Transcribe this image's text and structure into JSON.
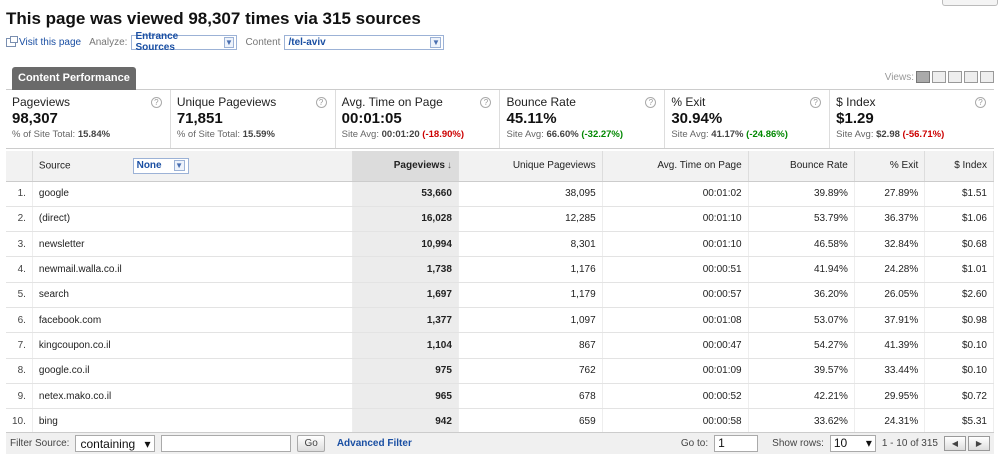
{
  "page": {
    "title": "This page was viewed 98,307 times via 315 sources"
  },
  "subbar": {
    "visit_link": "Visit this page",
    "analyze_label": "Analyze:",
    "analyze_value": "Entrance Sources",
    "content_label": "Content",
    "content_value": "/tel-aviv"
  },
  "tab": {
    "label": "Content Performance"
  },
  "views": {
    "label": "Views:"
  },
  "summary": [
    {
      "title": "Pageviews",
      "value": "98,307",
      "sub_prefix": "% of Site Total: ",
      "sub_value": "15.84%",
      "delta": ""
    },
    {
      "title": "Unique Pageviews",
      "value": "71,851",
      "sub_prefix": "% of Site Total: ",
      "sub_value": "15.59%",
      "delta": ""
    },
    {
      "title": "Avg. Time on Page",
      "value": "00:01:05",
      "sub_prefix": "Site Avg: ",
      "sub_value": "00:01:20",
      "delta": "(-18.90%)",
      "delta_type": "neg"
    },
    {
      "title": "Bounce Rate",
      "value": "45.11%",
      "sub_prefix": "Site Avg: ",
      "sub_value": "66.60%",
      "delta": "(-32.27%)",
      "delta_type": "pos"
    },
    {
      "title": "% Exit",
      "value": "30.94%",
      "sub_prefix": "Site Avg: ",
      "sub_value": "41.17%",
      "delta": "(-24.86%)",
      "delta_type": "pos"
    },
    {
      "title": "$ Index",
      "value": "$1.29",
      "sub_prefix": "Site Avg: ",
      "sub_value": "$2.98",
      "delta": "(-56.71%)",
      "delta_type": "neg"
    }
  ],
  "table": {
    "headers": {
      "source": "Source",
      "secondary": "None",
      "pageviews": "Pageviews",
      "unique": "Unique Pageviews",
      "avg_time": "Avg. Time on Page",
      "bounce": "Bounce Rate",
      "exit": "% Exit",
      "index": "$ Index"
    },
    "rows": [
      [
        "1.",
        "google",
        "53,660",
        "38,095",
        "00:01:02",
        "39.89%",
        "27.89%",
        "$1.51"
      ],
      [
        "2.",
        "(direct)",
        "16,028",
        "12,285",
        "00:01:10",
        "53.79%",
        "36.37%",
        "$1.06"
      ],
      [
        "3.",
        "newsletter",
        "10,994",
        "8,301",
        "00:01:10",
        "46.58%",
        "32.84%",
        "$0.68"
      ],
      [
        "4.",
        "newmail.walla.co.il",
        "1,738",
        "1,176",
        "00:00:51",
        "41.94%",
        "24.28%",
        "$1.01"
      ],
      [
        "5.",
        "search",
        "1,697",
        "1,179",
        "00:00:57",
        "36.20%",
        "26.05%",
        "$2.60"
      ],
      [
        "6.",
        "facebook.com",
        "1,377",
        "1,097",
        "00:01:08",
        "53.07%",
        "37.91%",
        "$0.98"
      ],
      [
        "7.",
        "kingcoupon.co.il",
        "1,104",
        "867",
        "00:00:47",
        "54.27%",
        "41.39%",
        "$0.10"
      ],
      [
        "8.",
        "google.co.il",
        "975",
        "762",
        "00:01:09",
        "39.57%",
        "33.44%",
        "$0.10"
      ],
      [
        "9.",
        "netex.mako.co.il",
        "965",
        "678",
        "00:00:52",
        "42.21%",
        "29.95%",
        "$0.72"
      ],
      [
        "10.",
        "bing",
        "942",
        "659",
        "00:00:58",
        "33.62%",
        "24.31%",
        "$5.31"
      ]
    ]
  },
  "footer": {
    "filter_label": "Filter Source:",
    "filter_mode": "containing",
    "go_label": "Go",
    "advanced_label": "Advanced Filter",
    "goto_label": "Go to:",
    "goto_value": "1",
    "showrows_label": "Show rows:",
    "showrows_value": "10",
    "range": "1 - 10 of 315"
  }
}
